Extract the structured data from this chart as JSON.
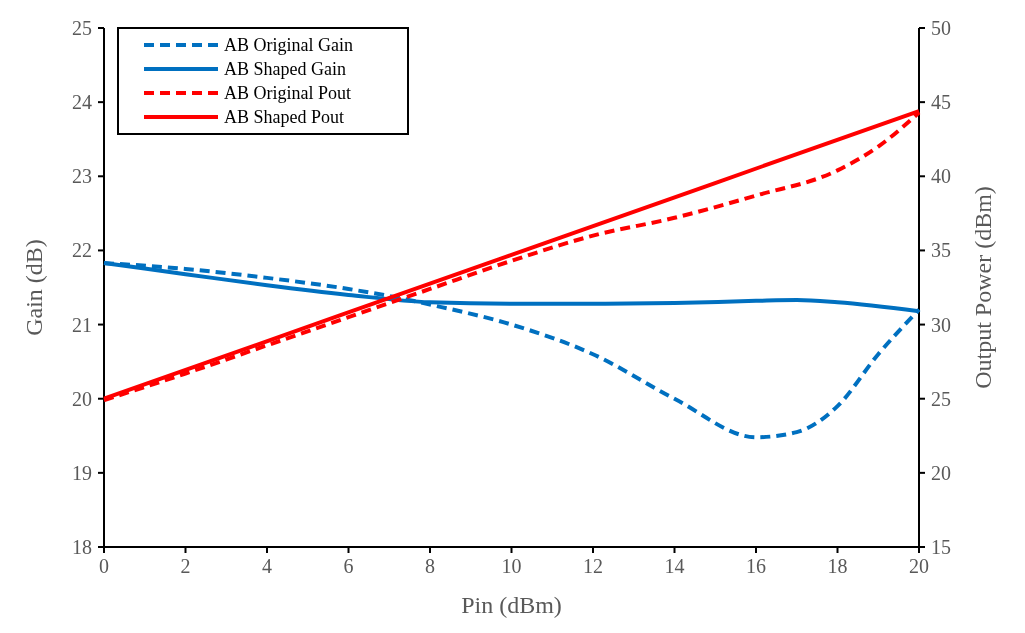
{
  "chart_data": {
    "type": "line",
    "xlabel": "Pin (dBm)",
    "ylabel": "Gain (dB)",
    "y2label": "Output Power (dBm)",
    "xlim": [
      0,
      20
    ],
    "xticks": [
      0,
      2,
      4,
      6,
      8,
      10,
      12,
      14,
      16,
      18,
      20
    ],
    "ylim": [
      18,
      25
    ],
    "yticks": [
      18,
      19,
      20,
      21,
      22,
      23,
      24,
      25
    ],
    "y2lim": [
      15,
      50
    ],
    "y2ticks": [
      15,
      20,
      25,
      30,
      35,
      40,
      45,
      50
    ],
    "grid": false,
    "legend": "top left",
    "marker": "none",
    "series": [
      {
        "name": "AB Original Gain",
        "color": "#0070c0",
        "line_style": "dashed",
        "x": [
          0,
          2,
          4,
          6,
          7.5,
          8,
          10,
          12,
          14,
          16,
          17,
          18,
          19,
          20
        ],
        "values": [
          21.83,
          21.75,
          21.63,
          21.48,
          21.33,
          21.27,
          21.0,
          20.6,
          20.0,
          19.48,
          19.55,
          19.9,
          20.6,
          21.2
        ]
      },
      {
        "name": "AB Shaped Gain",
        "color": "#0070c0",
        "line_style": "solid",
        "x": [
          0,
          2,
          4,
          6,
          8,
          10,
          12,
          14,
          16,
          17,
          18,
          20
        ],
        "values": [
          21.83,
          21.68,
          21.53,
          21.4,
          21.3,
          21.28,
          21.28,
          21.29,
          21.32,
          21.33,
          21.3,
          21.18
        ]
      },
      {
        "name": "AB Original Pout",
        "color": "#ff0000",
        "line_style": "dashed",
        "axis": "y2",
        "x": [
          0,
          2,
          4,
          6,
          8,
          10,
          12,
          14,
          16,
          18,
          19,
          20
        ],
        "values": [
          24.9,
          26.7,
          28.6,
          30.5,
          32.4,
          34.3,
          36.0,
          37.2,
          38.7,
          40.4,
          42.0,
          44.3
        ]
      },
      {
        "name": "AB Shaped Pout",
        "color": "#ff0000",
        "line_style": "solid",
        "axis": "y2",
        "x": [
          0,
          10,
          20
        ],
        "values": [
          25,
          34.7,
          44.4
        ]
      }
    ]
  }
}
